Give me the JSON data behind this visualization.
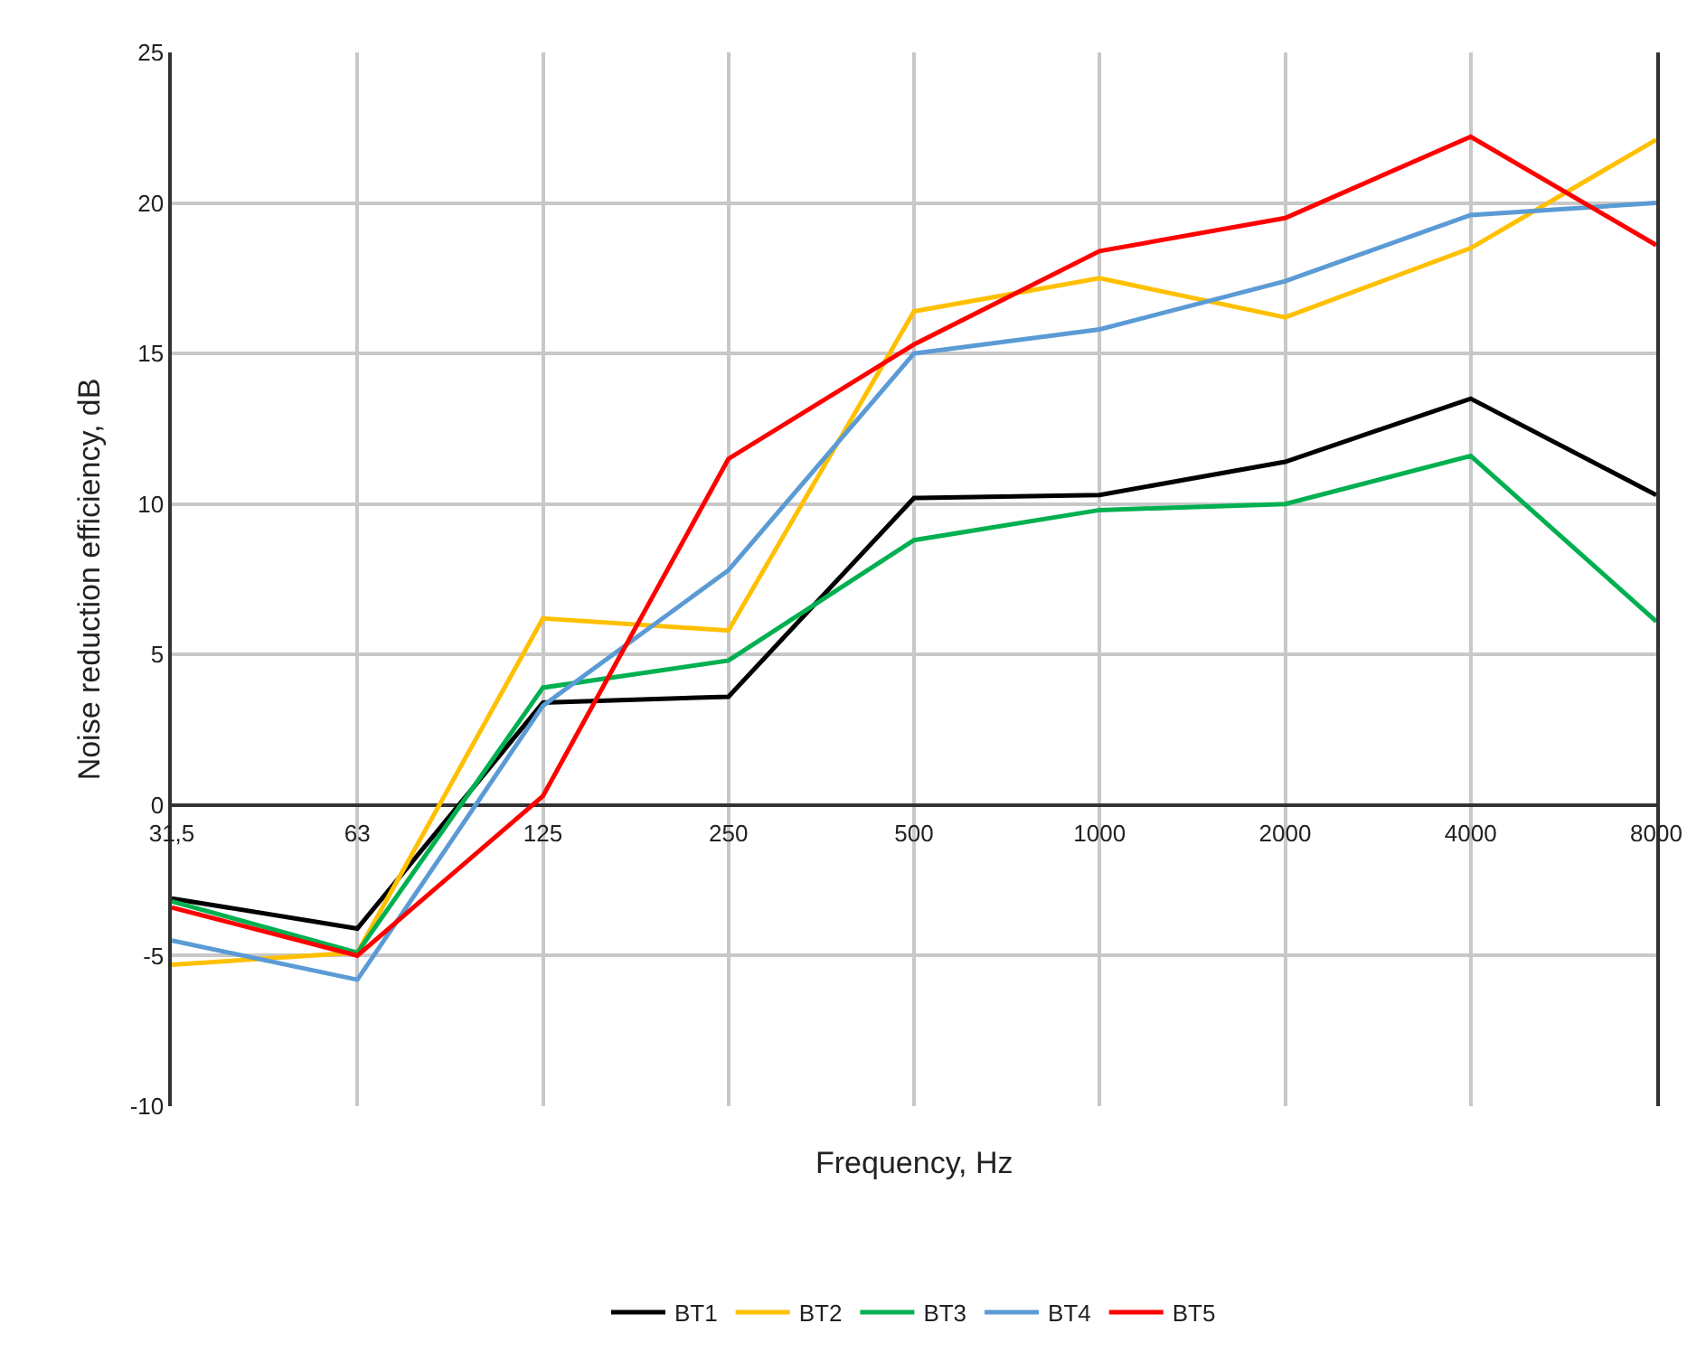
{
  "chart_data": {
    "type": "line",
    "xlabel": "Frequency, Hz",
    "ylabel": "Noise reduction efficiency, dB",
    "categories": [
      "31,5",
      "63",
      "125",
      "250",
      "500",
      "1000",
      "2000",
      "4000",
      "8000"
    ],
    "series": [
      {
        "name": "BT1",
        "color": "#000000",
        "values": [
          -3.1,
          -4.1,
          3.4,
          3.6,
          10.2,
          10.3,
          11.4,
          13.5,
          10.3
        ]
      },
      {
        "name": "BT2",
        "color": "#ffc000",
        "values": [
          -5.3,
          -4.9,
          6.2,
          5.8,
          16.4,
          17.5,
          16.2,
          18.5,
          22.1
        ]
      },
      {
        "name": "BT3",
        "color": "#00b050",
        "values": [
          -3.2,
          -4.9,
          3.9,
          4.8,
          8.8,
          9.8,
          10.0,
          11.6,
          6.1
        ]
      },
      {
        "name": "BT4",
        "color": "#5b9bd5",
        "values": [
          -4.5,
          -5.8,
          3.3,
          7.8,
          15.0,
          15.8,
          17.4,
          19.6,
          20.0
        ]
      },
      {
        "name": "BT5",
        "color": "#ff0000",
        "values": [
          -3.4,
          -5.0,
          0.3,
          11.5,
          15.3,
          18.4,
          19.5,
          22.2,
          18.6
        ]
      }
    ],
    "ylim": [
      -10,
      25
    ],
    "yticks": [
      -10,
      -5,
      0,
      5,
      10,
      15,
      20,
      25
    ],
    "grid": true,
    "legend": "bottom",
    "marker": "none",
    "line_style": "solid"
  }
}
